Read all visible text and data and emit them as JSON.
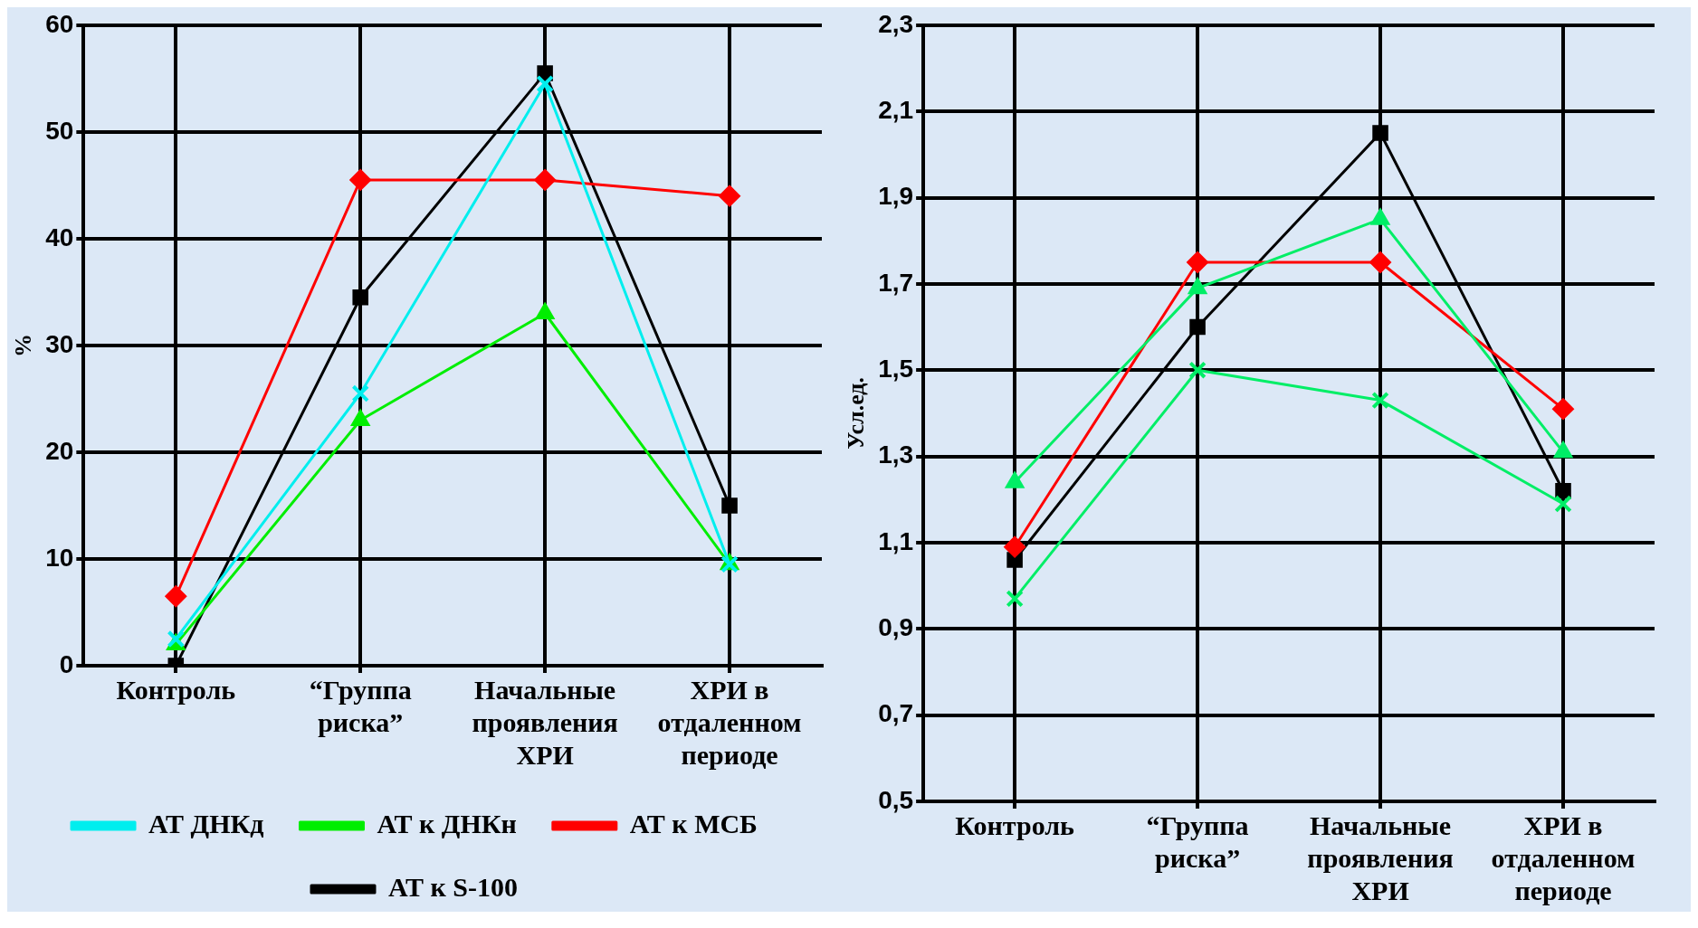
{
  "chart_data": [
    {
      "type": "line",
      "ylabel": "%",
      "categories": [
        "Контроль",
        "“Группа риска”",
        "Начальные проявления ХРИ",
        "ХРИ в отдаленном периоде"
      ],
      "ylim": [
        0,
        60
      ],
      "yticks": [
        0,
        10,
        20,
        30,
        40,
        50,
        60
      ],
      "grid": true,
      "legend": "bottom",
      "series": [
        {
          "name": "АТ к S-100",
          "color": "#000000",
          "marker": "square",
          "values": [
            0,
            34.5,
            55.5,
            15
          ]
        },
        {
          "name": "АТ к МСБ",
          "color": "#ff0000",
          "marker": "diamond",
          "values": [
            6.5,
            45.5,
            45.5,
            44
          ]
        },
        {
          "name": "АТ к ДНКн",
          "color": "#00ee00",
          "marker": "triangle",
          "values": [
            2,
            23,
            33,
            9.5
          ]
        },
        {
          "name": "АТ ДНКд",
          "color": "#00eeee",
          "marker": "cross",
          "values": [
            2.5,
            25.5,
            54.5,
            9.5
          ]
        }
      ]
    },
    {
      "type": "line",
      "ylabel": "Усл.ед.",
      "categories": [
        "Контроль",
        "“Группа риска”",
        "Начальные проявления ХРИ",
        "ХРИ в отдаленном периоде"
      ],
      "ylim": [
        0.5,
        2.3
      ],
      "yticks": [
        {
          "value": 0.5,
          "label": "0,5"
        },
        {
          "value": 0.7,
          "label": "0,7"
        },
        {
          "value": 0.9,
          "label": "0,9"
        },
        {
          "value": 1.1,
          "label": "1,1"
        },
        {
          "value": 1.3,
          "label": "1,3"
        },
        {
          "value": 1.5,
          "label": "1,5"
        },
        {
          "value": 1.7,
          "label": "1,7"
        },
        {
          "value": 1.9,
          "label": "1,9"
        },
        {
          "value": 2.1,
          "label": "2,1"
        },
        {
          "value": 2.3,
          "label": "2,3"
        }
      ],
      "grid": true,
      "series": [
        {
          "color": "#000000",
          "marker": "square",
          "values": [
            1.06,
            1.6,
            2.05,
            1.22
          ]
        },
        {
          "color": "#ff0000",
          "marker": "diamond",
          "values": [
            1.09,
            1.75,
            1.75,
            1.41
          ]
        },
        {
          "color": "#00ee66",
          "marker": "triangle",
          "values": [
            1.24,
            1.69,
            1.85,
            1.31
          ]
        },
        {
          "color": "#00ee66",
          "marker": "cross",
          "values": [
            0.97,
            1.5,
            1.43,
            1.19
          ]
        }
      ]
    }
  ]
}
